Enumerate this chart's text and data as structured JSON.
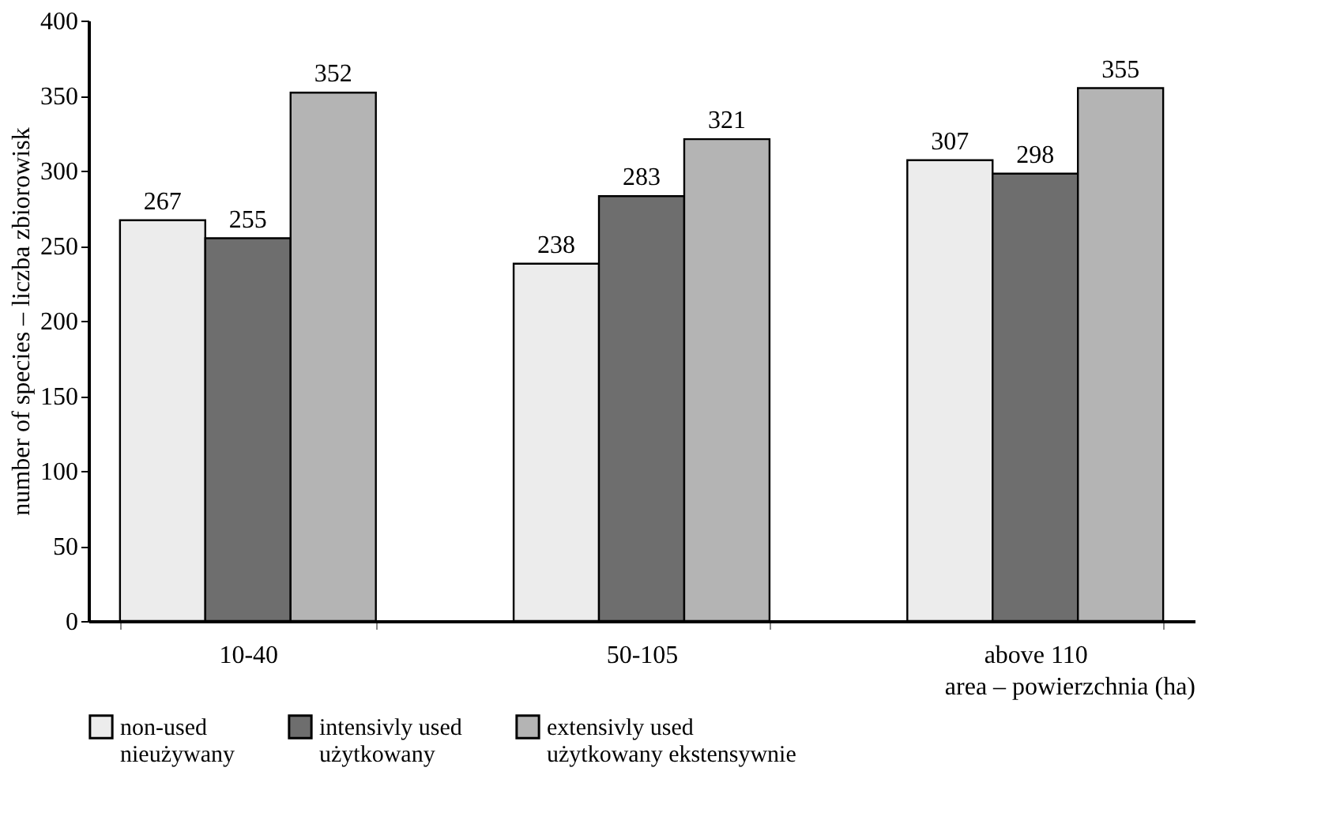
{
  "chart_data": {
    "type": "bar",
    "categories": [
      "10-40",
      "50-105",
      "above 110"
    ],
    "xlabel": "area – powierzchnia (ha)",
    "ylabel": "number of species – liczba zbiorowisk",
    "series": [
      {
        "name": "non-used\nnieużywany",
        "color": "#ececec",
        "values": [
          267,
          238,
          307
        ]
      },
      {
        "name": "intensivly used\nużytkowany",
        "color": "#6e6e6e",
        "values": [
          255,
          283,
          298
        ]
      },
      {
        "name": "extensivly used\nużytkowany ekstensywnie",
        "color": "#b4b4b4",
        "values": [
          352,
          321,
          355
        ]
      }
    ],
    "ylim": [
      0,
      400
    ],
    "yticks": [
      0,
      50,
      100,
      150,
      200,
      250,
      300,
      350,
      400
    ],
    "grid": false,
    "data_labels": true,
    "legend": "bottom left"
  }
}
